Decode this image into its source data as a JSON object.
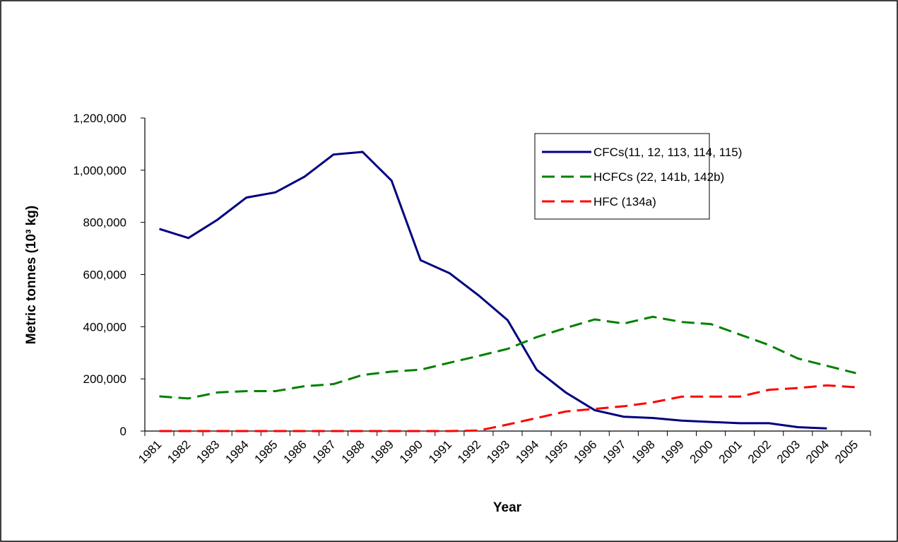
{
  "chart_data": {
    "type": "line",
    "x_label": "Year",
    "y_label": "Metric tonnes (10³ kg)",
    "categories": [
      "1981",
      "1982",
      "1983",
      "1984",
      "1985",
      "1986",
      "1987",
      "1988",
      "1989",
      "1990",
      "1991",
      "1992",
      "1993",
      "1994",
      "1995",
      "1996",
      "1997",
      "1998",
      "1999",
      "2000",
      "2001",
      "2002",
      "2003",
      "2004",
      "2005"
    ],
    "series": [
      {
        "name": "CFCs(11, 12, 113, 114, 115)",
        "color": "#000080",
        "style": "solid",
        "values": [
          775000,
          740000,
          810000,
          895000,
          915000,
          975000,
          1060000,
          1070000,
          960000,
          655000,
          605000,
          520000,
          425000,
          235000,
          148000,
          80000,
          55000,
          50000,
          40000,
          35000,
          30000,
          30000,
          15000,
          10000,
          null
        ]
      },
      {
        "name": "HCFCs (22, 141b, 142b)",
        "color": "#008000",
        "style": "dashed",
        "values": [
          133000,
          125000,
          148000,
          153000,
          153000,
          172000,
          180000,
          215000,
          228000,
          235000,
          262000,
          288000,
          315000,
          360000,
          395000,
          428000,
          412000,
          438000,
          418000,
          410000,
          370000,
          330000,
          278000,
          250000,
          222000
        ]
      },
      {
        "name": "HFC (134a)",
        "color": "#ff0000",
        "style": "dashed",
        "values": [
          0,
          0,
          0,
          0,
          0,
          0,
          0,
          0,
          0,
          0,
          0,
          2000,
          25000,
          50000,
          75000,
          85000,
          95000,
          110000,
          132000,
          132000,
          132000,
          158000,
          165000,
          175000,
          168000
        ]
      }
    ],
    "ylim": [
      0,
      1200000
    ],
    "yticks": [
      0,
      {
        "value": 200000,
        "label": "200,000"
      },
      {
        "value": 400000,
        "label": "400,000"
      },
      {
        "value": 600000,
        "label": "600,000"
      },
      {
        "value": 800000,
        "label": "800,000"
      },
      {
        "value": 1000000,
        "label": "1,000,000"
      },
      {
        "value": 1200000,
        "label": "1,200,000"
      }
    ],
    "grid": false,
    "legend": "upper right"
  }
}
